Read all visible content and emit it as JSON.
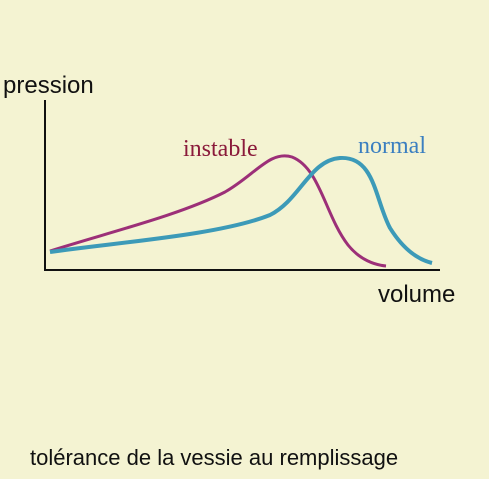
{
  "axes": {
    "y_label": "pression",
    "x_label": "volume"
  },
  "curves": [
    {
      "label": "instable"
    },
    {
      "label": "normal"
    }
  ],
  "caption": "tolérance de la vessie au remplissage"
}
